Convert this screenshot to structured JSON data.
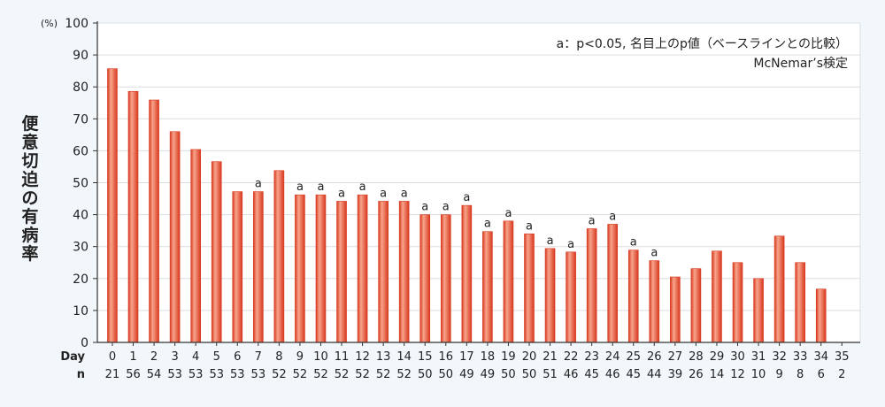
{
  "chart_data": {
    "type": "bar",
    "ylabel": "便意切迫の有病率",
    "yunit": "(%)",
    "ylim": [
      0,
      100
    ],
    "yticks": [
      0,
      10,
      20,
      30,
      40,
      50,
      60,
      70,
      80,
      90,
      100
    ],
    "grid": true,
    "row_labels": {
      "day": "Day",
      "n": "n"
    },
    "categories": [
      "0",
      "1",
      "2",
      "3",
      "4",
      "5",
      "6",
      "7",
      "8",
      "9",
      "10",
      "11",
      "12",
      "13",
      "14",
      "15",
      "16",
      "17",
      "18",
      "19",
      "20",
      "21",
      "22",
      "23",
      "24",
      "25",
      "26",
      "27",
      "28",
      "29",
      "30",
      "31",
      "32",
      "33",
      "34",
      "35"
    ],
    "n": [
      "21",
      "56",
      "54",
      "53",
      "53",
      "53",
      "53",
      "53",
      "52",
      "52",
      "52",
      "52",
      "52",
      "52",
      "52",
      "50",
      "50",
      "49",
      "49",
      "50",
      "50",
      "51",
      "46",
      "45",
      "46",
      "45",
      "44",
      "39",
      "26",
      "14",
      "12",
      "10",
      "9",
      "8",
      "6",
      "2"
    ],
    "values": [
      85.7,
      78.6,
      75.9,
      66.0,
      60.4,
      56.6,
      47.2,
      47.2,
      53.8,
      46.2,
      46.2,
      44.2,
      46.2,
      44.2,
      44.2,
      40.0,
      40.0,
      42.9,
      34.7,
      38.0,
      34.0,
      29.4,
      28.3,
      35.6,
      37.0,
      28.9,
      25.6,
      20.5,
      23.1,
      28.6,
      25.0,
      20.0,
      33.3,
      25.0,
      16.7,
      null
    ],
    "markers": [
      "",
      "",
      "",
      "",
      "",
      "",
      "",
      "a",
      "",
      "a",
      "a",
      "a",
      "a",
      "a",
      "a",
      "a",
      "a",
      "a",
      "a",
      "a",
      "a",
      "a",
      "a",
      "a",
      "a",
      "a",
      "a",
      "",
      "",
      "",
      "",
      "",
      "",
      "",
      "",
      ""
    ],
    "annotation_lines": [
      "a：p<0.05, 名目上のp値（ベースラインとの比較）",
      "McNemar’s検定"
    ],
    "colors": {
      "bar_light": "#f7a58c",
      "bar_mid": "#ec5a3a",
      "bar_dark": "#d8381e",
      "grid": "#d9dde2",
      "plot_bg": "#ffffff"
    }
  }
}
